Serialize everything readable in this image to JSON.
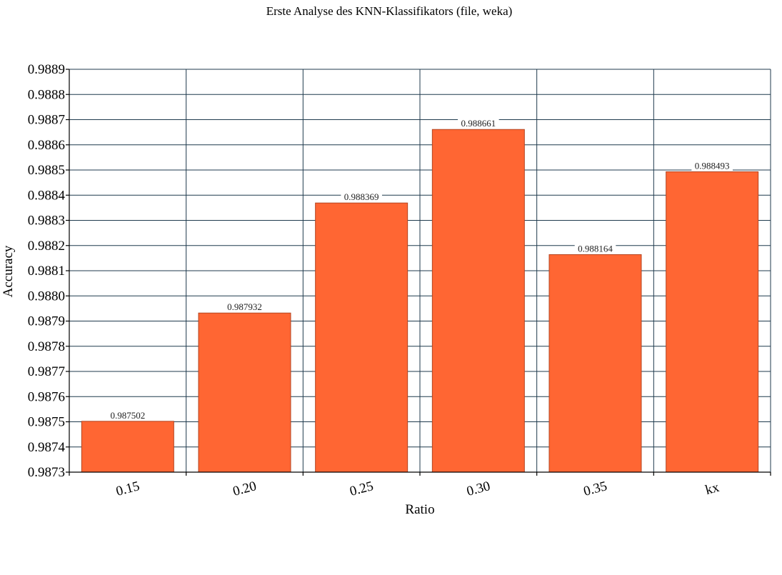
{
  "chart_data": {
    "type": "bar",
    "title": "Erste Analyse des KNN-Klassifikators (file, weka)",
    "xlabel": "Ratio",
    "ylabel": "Accuracy",
    "categories": [
      "0.15",
      "0.20",
      "0.25",
      "0.30",
      "0.35",
      "kx"
    ],
    "values": [
      0.987502,
      0.987932,
      0.988369,
      0.988661,
      0.988164,
      0.988493
    ],
    "data_labels": [
      "0.987502",
      "0.987932",
      "0.988369",
      "0.988661",
      "0.988164",
      "0.988493"
    ],
    "y_ticks": [
      "0.9873",
      "0.9874",
      "0.9875",
      "0.9876",
      "0.9877",
      "0.9878",
      "0.9879",
      "0.9880",
      "0.9881",
      "0.9882",
      "0.9883",
      "0.9884",
      "0.9885",
      "0.9886",
      "0.9887",
      "0.9888",
      "0.9889"
    ],
    "ylim": [
      0.9873,
      0.9889
    ],
    "grid": true,
    "legend": "none",
    "bar_color": "#ff6633"
  }
}
